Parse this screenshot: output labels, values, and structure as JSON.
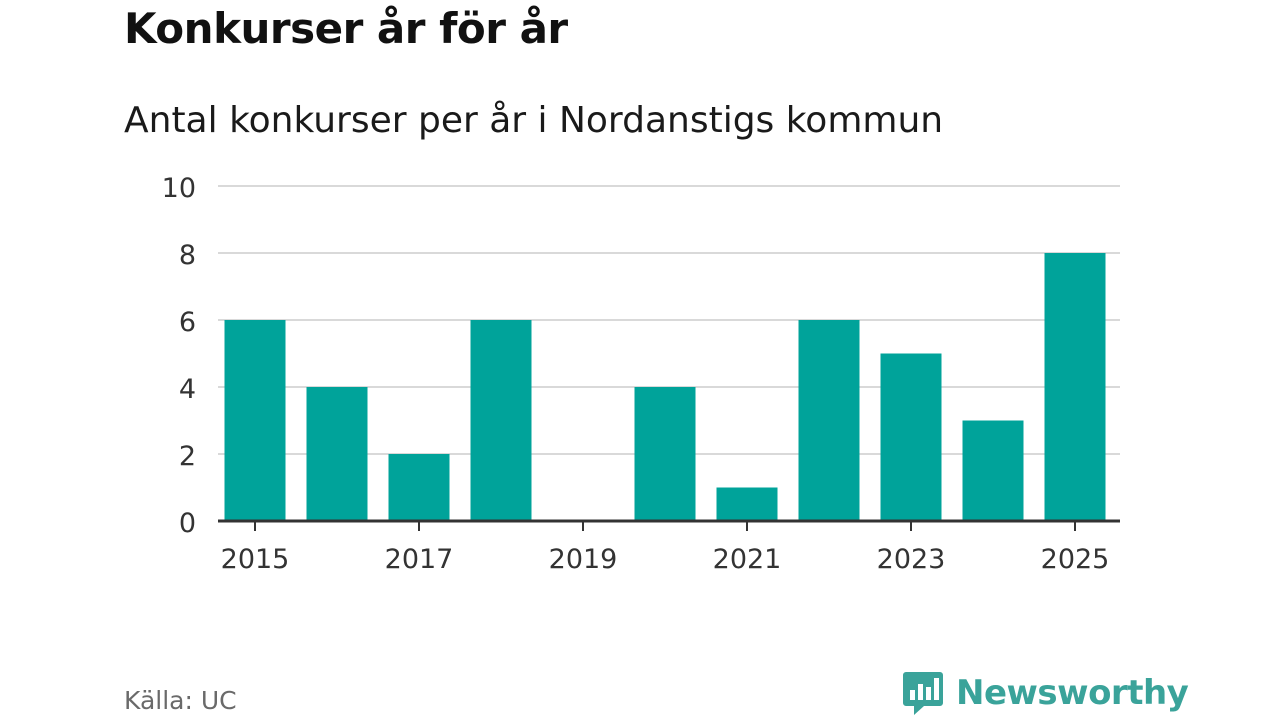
{
  "header": {
    "title": "Konkurser år för år",
    "subtitle": "Antal konkurser per år i Nordanstigs kommun"
  },
  "footer": {
    "source": "Källa: UC",
    "brand": "Newsworthy"
  },
  "colors": {
    "bar": "#00a39a",
    "grid": "#d9d9d9",
    "axis": "#333333",
    "brand": "#3aa39a"
  },
  "chart_data": {
    "type": "bar",
    "title": "Konkurser år för år",
    "subtitle": "Antal konkurser per år i Nordanstigs kommun",
    "xlabel": "",
    "ylabel": "",
    "categories": [
      2015,
      2016,
      2017,
      2018,
      2019,
      2020,
      2021,
      2022,
      2023,
      2024,
      2025
    ],
    "values": [
      6,
      4,
      2,
      6,
      0,
      4,
      1,
      6,
      5,
      3,
      8
    ],
    "ylim": [
      0,
      10
    ],
    "yticks": [
      0,
      2,
      4,
      6,
      8,
      10
    ],
    "xtick_labels": [
      "2015",
      "2017",
      "2019",
      "2021",
      "2023",
      "2025"
    ],
    "grid": true,
    "legend": "none"
  }
}
